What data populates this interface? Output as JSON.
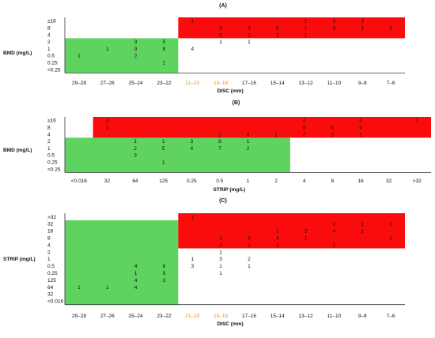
{
  "colors": {
    "green": "#5fd35f",
    "red": "#fb0c0c",
    "orange": "#f28c1c",
    "text": "#111111",
    "axis": "#333333"
  },
  "chart_data": [
    {
      "type": "heatmap",
      "panel_label": "(A)",
      "ylabel": "BMD (mg/L)",
      "xlabel": "DISC (mm)",
      "y_categories": [
        "≥16",
        "8",
        "4",
        "2",
        "1",
        "0.5",
        "0.25",
        "<0.25"
      ],
      "x_categories": [
        "29–28",
        "27–26",
        "25–24",
        "23–22",
        "21–20",
        "19–18",
        "17–16",
        "15–14",
        "13–12",
        "11–10",
        "9–8",
        "7–6"
      ],
      "highlight_x_categories": [
        "21–20",
        "19–18"
      ],
      "green_region": {
        "rows": [
          "2",
          "1",
          "0.5",
          "0.25",
          "<0.25"
        ],
        "columns": [
          "29–28",
          "27–26",
          "25–24",
          "23–22"
        ]
      },
      "red_region": {
        "rows": [
          "≥16",
          "8",
          "4"
        ],
        "columns": [
          "21–20",
          "19–18",
          "17–16",
          "15–14",
          "13–12",
          "11–10",
          "9–8",
          "7–6"
        ]
      },
      "cells": [
        {
          "y": "≥16",
          "x": "21–20",
          "v": 1
        },
        {
          "y": "≥16",
          "x": "13–12",
          "v": 1
        },
        {
          "y": "≥16",
          "x": "11–10",
          "v": 3
        },
        {
          "y": "≥16",
          "x": "9–8",
          "v": 3
        },
        {
          "y": "8",
          "x": "19–18",
          "v": 5
        },
        {
          "y": "8",
          "x": "17–16",
          "v": 4
        },
        {
          "y": "8",
          "x": "15–14",
          "v": 5
        },
        {
          "y": "8",
          "x": "13–12",
          "v": 1
        },
        {
          "y": "8",
          "x": "11–10",
          "v": 3
        },
        {
          "y": "8",
          "x": "9–8",
          "v": 1
        },
        {
          "y": "8",
          "x": "7–6",
          "v": 2
        },
        {
          "y": "4",
          "x": "19–18",
          "v": 6
        },
        {
          "y": "4",
          "x": "17–16",
          "v": 2
        },
        {
          "y": "4",
          "x": "15–14",
          "v": 3
        },
        {
          "y": "4",
          "x": "13–12",
          "v": 1
        },
        {
          "y": "2",
          "x": "25–24",
          "v": 3
        },
        {
          "y": "2",
          "x": "23–22",
          "v": 5
        },
        {
          "y": "2",
          "x": "19–18",
          "v": 1
        },
        {
          "y": "2",
          "x": "17–16",
          "v": 1
        },
        {
          "y": "1",
          "x": "27–26",
          "v": 1
        },
        {
          "y": "1",
          "x": "25–24",
          "v": 9
        },
        {
          "y": "1",
          "x": "23–22",
          "v": 8
        },
        {
          "y": "1",
          "x": "21–20",
          "v": 4
        },
        {
          "y": "0.5",
          "x": "29–28",
          "v": 1
        },
        {
          "y": "0.5",
          "x": "25–24",
          "v": 2
        },
        {
          "y": "0.25",
          "x": "23–22",
          "v": 1
        }
      ]
    },
    {
      "type": "heatmap",
      "panel_label": "(B)",
      "ylabel": "BMD (mg/L)",
      "xlabel": "STRIP (mg/L)",
      "y_categories": [
        "≥16",
        "8",
        "4",
        "2",
        "1",
        "0.5",
        "0.25",
        "<0.25"
      ],
      "x_categories": [
        "<0.016",
        "32",
        "64",
        "125",
        "0.25",
        "0.5",
        "1",
        "2",
        "4",
        "8",
        "16",
        "32",
        ">32"
      ],
      "highlight_x_categories": [],
      "green_region": {
        "rows": [
          "2",
          "1",
          "0.5",
          "0.25",
          "<0.25"
        ],
        "columns": [
          "<0.016",
          "32",
          "64",
          "125",
          "0.25",
          "0.5",
          "1",
          "2"
        ]
      },
      "red_region": {
        "rows": [
          "≥16",
          "8",
          "4"
        ],
        "columns": [
          "4",
          "8",
          "16",
          "32",
          ">32"
        ]
      },
      "cells": [
        {
          "y": "≥16",
          "x": "4",
          "v": 1
        },
        {
          "y": "≥16",
          "x": "16",
          "v": 3
        },
        {
          "y": "≥16",
          "x": "32",
          "v": 3
        },
        {
          "y": "≥16",
          "x": ">32",
          "v": 1
        },
        {
          "y": "8",
          "x": "4",
          "v": 8
        },
        {
          "y": "8",
          "x": "8",
          "v": 6
        },
        {
          "y": "8",
          "x": "16",
          "v": 4
        },
        {
          "y": "8",
          "x": "32",
          "v": 1
        },
        {
          "y": "4",
          "x": "0.5",
          "v": 2
        },
        {
          "y": "4",
          "x": "1",
          "v": 4
        },
        {
          "y": "4",
          "x": "2",
          "v": 1
        },
        {
          "y": "4",
          "x": "4",
          "v": 2
        },
        {
          "y": "4",
          "x": "8",
          "v": 2
        },
        {
          "y": "4",
          "x": "16",
          "v": 1
        },
        {
          "y": "2",
          "x": "64",
          "v": 1
        },
        {
          "y": "2",
          "x": "125",
          "v": 1
        },
        {
          "y": "2",
          "x": "0.25",
          "v": 3
        },
        {
          "y": "2",
          "x": "0.5",
          "v": 6
        },
        {
          "y": "2",
          "x": "1",
          "v": 1
        },
        {
          "y": "1",
          "x": "64",
          "v": 2
        },
        {
          "y": "1",
          "x": "125",
          "v": 5
        },
        {
          "y": "1",
          "x": "0.25",
          "v": 4
        },
        {
          "y": "1",
          "x": "0.5",
          "v": 7
        },
        {
          "y": "1",
          "x": "1",
          "v": 2
        },
        {
          "y": "0.5",
          "x": "64",
          "v": 3
        },
        {
          "y": "0.25",
          "x": "125",
          "v": 1
        }
      ]
    },
    {
      "type": "heatmap",
      "panel_label": "(C)",
      "ylabel": "STRIP (mg/L)",
      "xlabel": "DISC (mm)",
      "y_categories": [
        ">32",
        "32",
        "16",
        "8",
        "4",
        "2",
        "1",
        "0.5",
        "0.25",
        "125",
        "64",
        "32",
        "<0.016"
      ],
      "x_categories": [
        "29–28",
        "27–26",
        "25–24",
        "23–22",
        "21–20",
        "19–18",
        "17–16",
        "15–14",
        "13–12",
        "11–10",
        "9–8",
        "7–6"
      ],
      "highlight_x_categories": [
        "21–20",
        "19–18"
      ],
      "green_region": {
        "rows": [
          "2",
          "1",
          "0.5",
          "0.25",
          "125",
          "64",
          "32",
          "<0.016"
        ],
        "columns": [
          "29–28",
          "27–26",
          "25–24",
          "23–22"
        ]
      },
      "red_region": {
        "rows": [
          ">32",
          "32",
          "16",
          "8",
          "4"
        ],
        "columns": [
          "21–20",
          "19–18",
          "17–16",
          "15–14",
          "13–12",
          "11–10",
          "9–8",
          "7–6"
        ]
      },
      "cells": [
        {
          "y": ">32",
          "x": "21–20",
          "v": 1
        },
        {
          "y": "32",
          "x": "11–10",
          "v": 2
        },
        {
          "y": "32",
          "x": "9–8",
          "v": 1
        },
        {
          "y": "32",
          "x": "7–6",
          "v": 1
        },
        {
          "y": "16",
          "x": "15–14",
          "v": 1
        },
        {
          "y": "16",
          "x": "13–12",
          "v": 2
        },
        {
          "y": "16",
          "x": "11–10",
          "v": 4
        },
        {
          "y": "16",
          "x": "9–8",
          "v": 1
        },
        {
          "y": "8",
          "x": "19–18",
          "v": 1
        },
        {
          "y": "8",
          "x": "17–16",
          "v": 3
        },
        {
          "y": "8",
          "x": "15–14",
          "v": 4
        },
        {
          "y": "8",
          "x": "13–12",
          "v": 1
        },
        {
          "y": "8",
          "x": "7–6",
          "v": 1
        },
        {
          "y": "4",
          "x": "19–18",
          "v": 3
        },
        {
          "y": "4",
          "x": "17–16",
          "v": 3
        },
        {
          "y": "4",
          "x": "15–14",
          "v": 3
        },
        {
          "y": "4",
          "x": "11–10",
          "v": 2
        },
        {
          "y": "2",
          "x": "19–18",
          "v": 1
        },
        {
          "y": "1",
          "x": "21–20",
          "v": 1
        },
        {
          "y": "1",
          "x": "19–18",
          "v": 3
        },
        {
          "y": "1",
          "x": "17–16",
          "v": 2
        },
        {
          "y": "0.5",
          "x": "25–24",
          "v": 4
        },
        {
          "y": "0.5",
          "x": "23–22",
          "v": 6
        },
        {
          "y": "0.5",
          "x": "21–20",
          "v": 3
        },
        {
          "y": "0.5",
          "x": "19–18",
          "v": 1
        },
        {
          "y": "0.5",
          "x": "17–16",
          "v": 1
        },
        {
          "y": "0.25",
          "x": "25–24",
          "v": 1
        },
        {
          "y": "0.25",
          "x": "23–22",
          "v": 5
        },
        {
          "y": "0.25",
          "x": "19–18",
          "v": 1
        },
        {
          "y": "125",
          "x": "25–24",
          "v": 4
        },
        {
          "y": "125",
          "x": "23–22",
          "v": 3
        },
        {
          "y": "64",
          "x": "29–28",
          "v": 1
        },
        {
          "y": "64",
          "x": "27–26",
          "v": 1
        },
        {
          "y": "64",
          "x": "25–24",
          "v": 4
        },
        {
          "y": "0.5",
          "x": "25–24",
          "v": 1,
          "dup": true
        }
      ]
    }
  ]
}
